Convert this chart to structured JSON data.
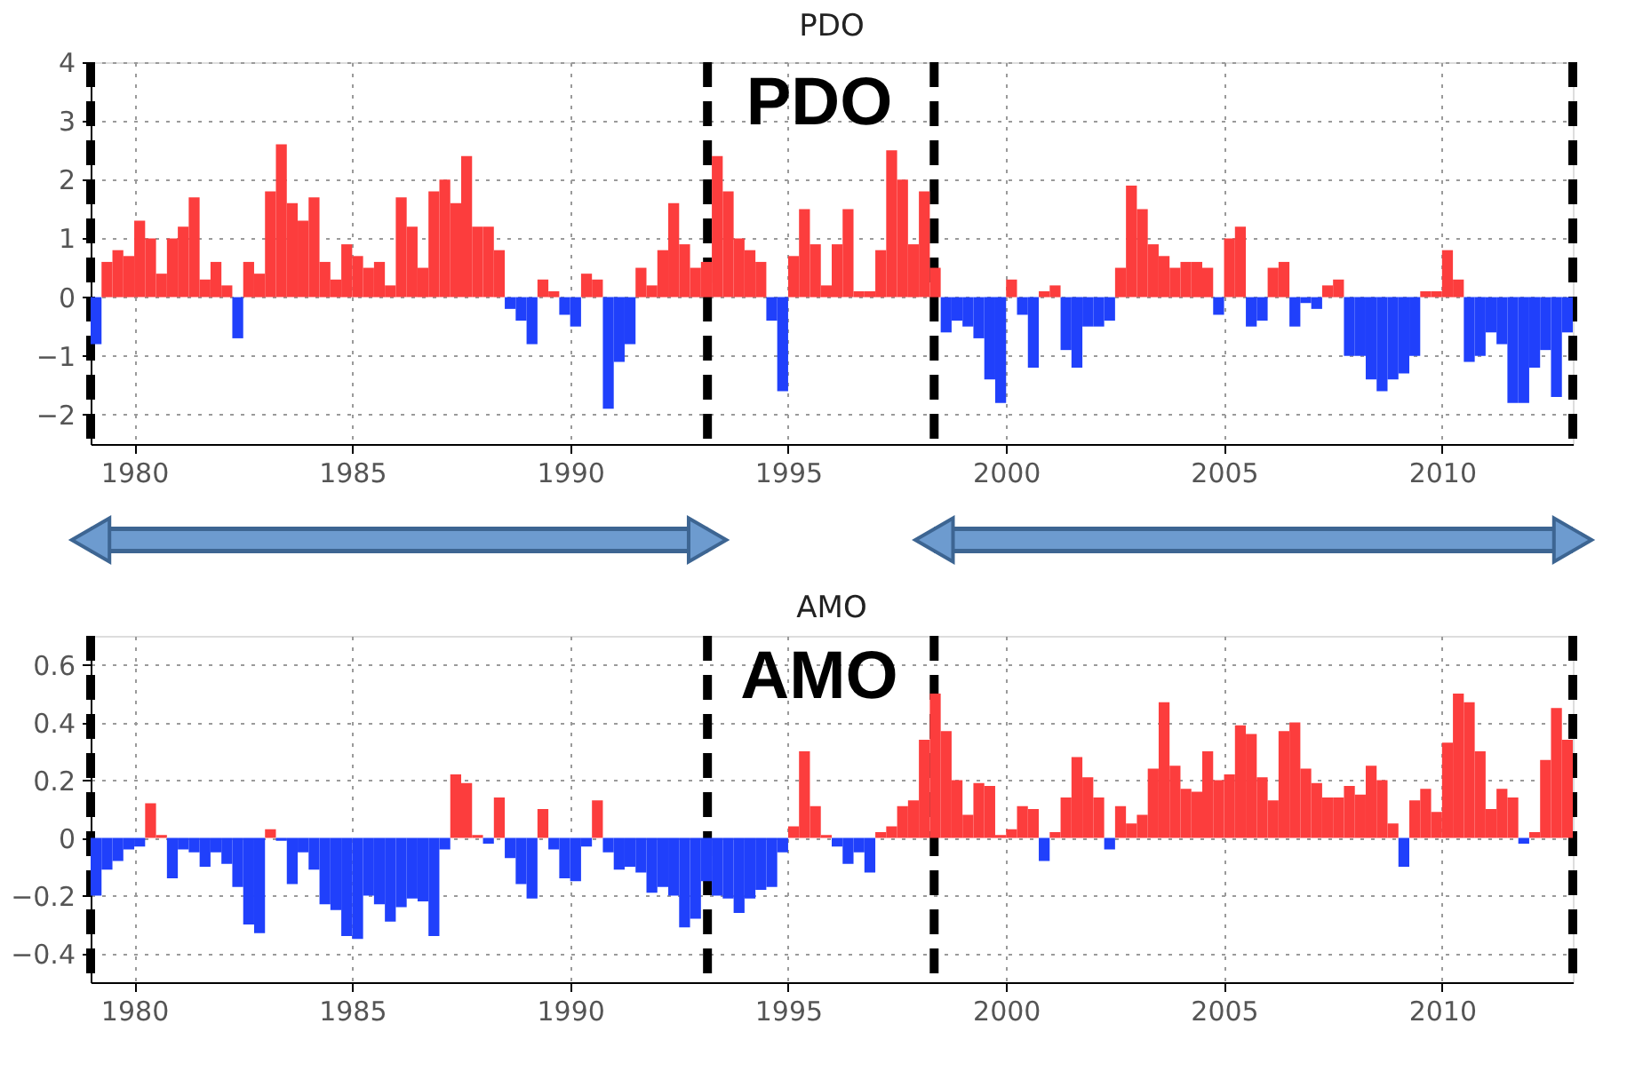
{
  "chart_data": [
    {
      "type": "bar",
      "title": "PDO",
      "annotations": [
        "PDO"
      ],
      "x": [
        1979.125,
        1979.375,
        1979.625,
        1979.875,
        1980.125,
        1980.375,
        1980.625,
        1980.875,
        1981.125,
        1981.375,
        1981.625,
        1981.875,
        1982.125,
        1982.375,
        1982.625,
        1982.875,
        1983.125,
        1983.375,
        1983.625,
        1983.875,
        1984.125,
        1984.375,
        1984.625,
        1984.875,
        1985.125,
        1985.375,
        1985.625,
        1985.875,
        1986.125,
        1986.375,
        1986.625,
        1986.875,
        1987.125,
        1987.375,
        1987.625,
        1987.875,
        1988.125,
        1988.375,
        1988.625,
        1988.875,
        1989.125,
        1989.375,
        1989.625,
        1989.875,
        1990.125,
        1990.375,
        1990.625,
        1990.875,
        1991.125,
        1991.375,
        1991.625,
        1991.875,
        1992.125,
        1992.375,
        1992.625,
        1992.875,
        1993.125,
        1993.375,
        1993.625,
        1993.875,
        1994.125,
        1994.375,
        1994.625,
        1994.875,
        1995.125,
        1995.375,
        1995.625,
        1995.875,
        1996.125,
        1996.375,
        1996.625,
        1996.875,
        1997.125,
        1997.375,
        1997.625,
        1997.875,
        1998.125,
        1998.375,
        1998.625,
        1998.875,
        1999.125,
        1999.375,
        1999.625,
        1999.875,
        2000.125,
        2000.375,
        2000.625,
        2000.875,
        2001.125,
        2001.375,
        2001.625,
        2001.875,
        2002.125,
        2002.375,
        2002.625,
        2002.875,
        2003.125,
        2003.375,
        2003.625,
        2003.875,
        2004.125,
        2004.375,
        2004.625,
        2004.875,
        2005.125,
        2005.375,
        2005.625,
        2005.875,
        2006.125,
        2006.375,
        2006.625,
        2006.875,
        2007.125,
        2007.375,
        2007.625,
        2007.875,
        2008.125,
        2008.375,
        2008.625,
        2008.875,
        2009.125,
        2009.375,
        2009.625,
        2009.875,
        2010.125,
        2010.375,
        2010.625,
        2010.875,
        2011.125,
        2011.375,
        2011.625,
        2011.875,
        2012.125,
        2012.375,
        2012.625,
        2012.875
      ],
      "values": [
        -0.8,
        0.6,
        0.8,
        0.7,
        1.3,
        1.0,
        0.4,
        1.0,
        1.2,
        1.7,
        0.3,
        0.6,
        0.2,
        -0.7,
        0.6,
        0.4,
        1.8,
        2.6,
        1.6,
        1.3,
        1.7,
        0.6,
        0.3,
        0.9,
        0.7,
        0.5,
        0.6,
        0.2,
        1.7,
        1.2,
        0.5,
        1.8,
        2.0,
        1.6,
        2.4,
        1.2,
        1.2,
        0.8,
        -0.2,
        -0.4,
        -0.8,
        0.3,
        0.1,
        -0.3,
        -0.5,
        0.4,
        0.3,
        -1.9,
        -1.1,
        -0.8,
        0.5,
        0.2,
        0.8,
        1.6,
        0.9,
        0.5,
        0.6,
        2.4,
        1.8,
        1.0,
        0.8,
        0.6,
        -0.4,
        -1.6,
        0.7,
        1.5,
        0.9,
        0.2,
        0.9,
        1.5,
        0.1,
        0.1,
        0.8,
        2.5,
        2.0,
        0.9,
        1.8,
        0.5,
        -0.6,
        -0.4,
        -0.5,
        -0.7,
        -1.4,
        -1.8,
        0.3,
        -0.3,
        -1.2,
        0.1,
        0.2,
        -0.9,
        -1.2,
        -0.5,
        -0.5,
        -0.4,
        0.5,
        1.9,
        1.5,
        0.9,
        0.7,
        0.5,
        0.6,
        0.6,
        0.5,
        -0.3,
        1.0,
        1.2,
        -0.5,
        -0.4,
        0.5,
        0.6,
        -0.5,
        -0.1,
        -0.2,
        0.2,
        0.3,
        -1.0,
        -1.0,
        -1.4,
        -1.6,
        -1.4,
        -1.3,
        -1.0,
        0.1,
        0.1,
        0.8,
        0.3,
        -1.1,
        -1.0,
        -0.6,
        -0.8,
        -1.8,
        -1.8,
        -1.2,
        -0.9,
        -1.7,
        -0.6
      ],
      "colors": [
        "#2040fb",
        "#fc3d3d",
        "#fc3d3d",
        "#fc3d3d",
        "#fc3d3d",
        "#fc3d3d",
        "#fc3d3d",
        "#fc3d3d",
        "#fc3d3d",
        "#fc3d3d",
        "#fc3d3d",
        "#fc3d3d",
        "#fc3d3d",
        "#2040fb",
        "#fc3d3d",
        "#fc3d3d",
        "#fc3d3d",
        "#fc3d3d",
        "#fc3d3d",
        "#fc3d3d",
        "#fc3d3d",
        "#fc3d3d",
        "#fc3d3d",
        "#fc3d3d",
        "#fc3d3d",
        "#fc3d3d",
        "#fc3d3d",
        "#fc3d3d",
        "#fc3d3d",
        "#fc3d3d",
        "#fc3d3d",
        "#fc3d3d",
        "#fc3d3d",
        "#fc3d3d",
        "#fc3d3d",
        "#fc3d3d",
        "#fc3d3d",
        "#fc3d3d",
        "#2040fb",
        "#2040fb",
        "#2040fb",
        "#fc3d3d",
        "#fc3d3d",
        "#2040fb",
        "#2040fb",
        "#fc3d3d",
        "#fc3d3d",
        "#2040fb",
        "#2040fb",
        "#2040fb",
        "#fc3d3d",
        "#fc3d3d",
        "#fc3d3d",
        "#fc3d3d",
        "#fc3d3d",
        "#fc3d3d",
        "#fc3d3d",
        "#fc3d3d",
        "#fc3d3d",
        "#fc3d3d",
        "#fc3d3d",
        "#fc3d3d",
        "#2040fb",
        "#2040fb",
        "#fc3d3d",
        "#fc3d3d",
        "#fc3d3d",
        "#fc3d3d",
        "#fc3d3d",
        "#fc3d3d",
        "#fc3d3d",
        "#fc3d3d",
        "#fc3d3d",
        "#fc3d3d",
        "#fc3d3d",
        "#fc3d3d",
        "#fc3d3d",
        "#fc3d3d",
        "#2040fb",
        "#2040fb",
        "#2040fb",
        "#2040fb",
        "#2040fb",
        "#2040fb",
        "#fc3d3d",
        "#2040fb",
        "#2040fb",
        "#fc3d3d",
        "#fc3d3d",
        "#2040fb",
        "#2040fb",
        "#2040fb",
        "#2040fb",
        "#2040fb",
        "#fc3d3d",
        "#fc3d3d",
        "#fc3d3d",
        "#fc3d3d",
        "#fc3d3d",
        "#fc3d3d",
        "#fc3d3d",
        "#fc3d3d",
        "#fc3d3d",
        "#2040fb",
        "#fc3d3d",
        "#fc3d3d",
        "#2040fb",
        "#2040fb",
        "#fc3d3d",
        "#fc3d3d",
        "#2040fb",
        "#2040fb",
        "#2040fb",
        "#fc3d3d",
        "#fc3d3d",
        "#2040fb",
        "#2040fb",
        "#2040fb",
        "#2040fb",
        "#2040fb",
        "#2040fb",
        "#2040fb",
        "#fc3d3d",
        "#fc3d3d",
        "#fc3d3d",
        "#fc3d3d",
        "#2040fb",
        "#2040fb",
        "#2040fb",
        "#2040fb",
        "#2040fb",
        "#2040fb",
        "#2040fb",
        "#2040fb",
        "#2040fb",
        "#2040fb"
      ],
      "xlim": [
        1979,
        2013
      ],
      "xticks": [
        1980,
        1985,
        1990,
        1995,
        2000,
        2005,
        2010
      ],
      "ylim": [
        -2.5,
        4
      ],
      "yticks": [
        -2,
        -1,
        0,
        1,
        2,
        3,
        4
      ],
      "grid": true,
      "ref_lines": [
        {
          "axis": "x",
          "value": 1979,
          "color": "#000000",
          "line_style": "dashed"
        },
        {
          "axis": "x",
          "value": 1993.15,
          "color": "#000000",
          "line_style": "dashed"
        },
        {
          "axis": "x",
          "value": 1998.35,
          "color": "#000000",
          "line_style": "dashed"
        },
        {
          "axis": "x",
          "value": 2013,
          "color": "#000000",
          "line_style": "dashed"
        }
      ]
    },
    {
      "type": "bar",
      "title": "AMO",
      "annotations": [
        "AMO"
      ],
      "x": [
        1979.125,
        1979.375,
        1979.625,
        1979.875,
        1980.125,
        1980.375,
        1980.625,
        1980.875,
        1981.125,
        1981.375,
        1981.625,
        1981.875,
        1982.125,
        1982.375,
        1982.625,
        1982.875,
        1983.125,
        1983.375,
        1983.625,
        1983.875,
        1984.125,
        1984.375,
        1984.625,
        1984.875,
        1985.125,
        1985.375,
        1985.625,
        1985.875,
        1986.125,
        1986.375,
        1986.625,
        1986.875,
        1987.125,
        1987.375,
        1987.625,
        1987.875,
        1988.125,
        1988.375,
        1988.625,
        1988.875,
        1989.125,
        1989.375,
        1989.625,
        1989.875,
        1990.125,
        1990.375,
        1990.625,
        1990.875,
        1991.125,
        1991.375,
        1991.625,
        1991.875,
        1992.125,
        1992.375,
        1992.625,
        1992.875,
        1993.125,
        1993.375,
        1993.625,
        1993.875,
        1994.125,
        1994.375,
        1994.625,
        1994.875,
        1995.125,
        1995.375,
        1995.625,
        1995.875,
        1996.125,
        1996.375,
        1996.625,
        1996.875,
        1997.125,
        1997.375,
        1997.625,
        1997.875,
        1998.125,
        1998.375,
        1998.625,
        1998.875,
        1999.125,
        1999.375,
        1999.625,
        1999.875,
        2000.125,
        2000.375,
        2000.625,
        2000.875,
        2001.125,
        2001.375,
        2001.625,
        2001.875,
        2002.125,
        2002.375,
        2002.625,
        2002.875,
        2003.125,
        2003.375,
        2003.625,
        2003.875,
        2004.125,
        2004.375,
        2004.625,
        2004.875,
        2005.125,
        2005.375,
        2005.625,
        2005.875,
        2006.125,
        2006.375,
        2006.625,
        2006.875,
        2007.125,
        2007.375,
        2007.625,
        2007.875,
        2008.125,
        2008.375,
        2008.625,
        2008.875,
        2009.125,
        2009.375,
        2009.625,
        2009.875,
        2010.125,
        2010.375,
        2010.625,
        2010.875,
        2011.125,
        2011.375,
        2011.625,
        2011.875,
        2012.125,
        2012.375,
        2012.625,
        2012.875
      ],
      "values": [
        -0.2,
        -0.11,
        -0.08,
        -0.04,
        -0.03,
        0.12,
        0.01,
        -0.14,
        -0.04,
        -0.05,
        -0.1,
        -0.05,
        -0.09,
        -0.17,
        -0.3,
        -0.33,
        0.03,
        -0.01,
        -0.16,
        -0.05,
        -0.11,
        -0.23,
        -0.25,
        -0.34,
        -0.35,
        -0.2,
        -0.23,
        -0.29,
        -0.24,
        -0.21,
        -0.22,
        -0.34,
        -0.04,
        0.22,
        0.19,
        0.01,
        -0.02,
        0.14,
        -0.07,
        -0.16,
        -0.21,
        0.1,
        -0.04,
        -0.14,
        -0.15,
        -0.03,
        0.13,
        -0.05,
        -0.11,
        -0.1,
        -0.12,
        -0.19,
        -0.17,
        -0.2,
        -0.31,
        -0.28,
        -0.15,
        -0.2,
        -0.21,
        -0.26,
        -0.21,
        -0.18,
        -0.17,
        -0.05,
        0.04,
        0.3,
        0.11,
        0.01,
        -0.03,
        -0.09,
        -0.05,
        -0.12,
        0.02,
        0.04,
        0.11,
        0.13,
        0.34,
        0.5,
        0.37,
        0.2,
        0.08,
        0.19,
        0.18,
        0.01,
        0.03,
        0.11,
        0.1,
        -0.08,
        0.02,
        0.14,
        0.28,
        0.21,
        0.14,
        -0.04,
        0.11,
        0.05,
        0.08,
        0.24,
        0.47,
        0.25,
        0.17,
        0.16,
        0.3,
        0.2,
        0.22,
        0.39,
        0.36,
        0.21,
        0.13,
        0.37,
        0.4,
        0.24,
        0.19,
        0.14,
        0.14,
        0.18,
        0.15,
        0.25,
        0.2,
        0.05,
        -0.1,
        0.13,
        0.17,
        0.09,
        0.33,
        0.5,
        0.47,
        0.3,
        0.1,
        0.17,
        0.14,
        -0.02,
        0.02,
        0.27,
        0.45,
        0.34
      ],
      "colors": [
        "#2040fb",
        "#2040fb",
        "#2040fb",
        "#2040fb",
        "#2040fb",
        "#fc3d3d",
        "#fc3d3d",
        "#2040fb",
        "#2040fb",
        "#2040fb",
        "#2040fb",
        "#2040fb",
        "#2040fb",
        "#2040fb",
        "#2040fb",
        "#2040fb",
        "#fc3d3d",
        "#2040fb",
        "#2040fb",
        "#2040fb",
        "#2040fb",
        "#2040fb",
        "#2040fb",
        "#2040fb",
        "#2040fb",
        "#2040fb",
        "#2040fb",
        "#2040fb",
        "#2040fb",
        "#2040fb",
        "#2040fb",
        "#2040fb",
        "#2040fb",
        "#fc3d3d",
        "#fc3d3d",
        "#fc3d3d",
        "#2040fb",
        "#fc3d3d",
        "#2040fb",
        "#2040fb",
        "#2040fb",
        "#fc3d3d",
        "#2040fb",
        "#2040fb",
        "#2040fb",
        "#2040fb",
        "#fc3d3d",
        "#2040fb",
        "#2040fb",
        "#2040fb",
        "#2040fb",
        "#2040fb",
        "#2040fb",
        "#2040fb",
        "#2040fb",
        "#2040fb",
        "#2040fb",
        "#2040fb",
        "#2040fb",
        "#2040fb",
        "#2040fb",
        "#2040fb",
        "#2040fb",
        "#2040fb",
        "#fc3d3d",
        "#fc3d3d",
        "#fc3d3d",
        "#fc3d3d",
        "#2040fb",
        "#2040fb",
        "#2040fb",
        "#2040fb",
        "#fc3d3d",
        "#fc3d3d",
        "#fc3d3d",
        "#fc3d3d",
        "#fc3d3d",
        "#fc3d3d",
        "#fc3d3d",
        "#fc3d3d",
        "#fc3d3d",
        "#fc3d3d",
        "#fc3d3d",
        "#fc3d3d",
        "#fc3d3d",
        "#fc3d3d",
        "#fc3d3d",
        "#2040fb",
        "#fc3d3d",
        "#fc3d3d",
        "#fc3d3d",
        "#fc3d3d",
        "#fc3d3d",
        "#2040fb",
        "#fc3d3d",
        "#fc3d3d",
        "#fc3d3d",
        "#fc3d3d",
        "#fc3d3d",
        "#fc3d3d",
        "#fc3d3d",
        "#fc3d3d",
        "#fc3d3d",
        "#fc3d3d",
        "#fc3d3d",
        "#fc3d3d",
        "#fc3d3d",
        "#fc3d3d",
        "#fc3d3d",
        "#fc3d3d",
        "#fc3d3d",
        "#fc3d3d",
        "#fc3d3d",
        "#fc3d3d",
        "#fc3d3d",
        "#fc3d3d",
        "#fc3d3d",
        "#fc3d3d",
        "#fc3d3d",
        "#fc3d3d",
        "#2040fb",
        "#fc3d3d",
        "#fc3d3d",
        "#fc3d3d",
        "#fc3d3d",
        "#fc3d3d",
        "#fc3d3d",
        "#fc3d3d",
        "#fc3d3d",
        "#fc3d3d",
        "#fc3d3d",
        "#2040fb",
        "#fc3d3d",
        "#fc3d3d",
        "#fc3d3d",
        "#fc3d3d"
      ],
      "xlim": [
        1979,
        2013
      ],
      "xticks": [
        1980,
        1985,
        1990,
        1995,
        2000,
        2005,
        2010
      ],
      "ylim": [
        -0.5,
        0.7
      ],
      "yticks": [
        -0.4,
        -0.2,
        0,
        0.2,
        0.4,
        0.6
      ],
      "grid": true,
      "ref_lines": [
        {
          "axis": "x",
          "value": 1979,
          "color": "#000000",
          "line_style": "dashed"
        },
        {
          "axis": "x",
          "value": 1993.15,
          "color": "#000000",
          "line_style": "dashed"
        },
        {
          "axis": "x",
          "value": 1998.35,
          "color": "#000000",
          "line_style": "dashed"
        },
        {
          "axis": "x",
          "value": 2013,
          "color": "#000000",
          "line_style": "dashed"
        }
      ]
    }
  ]
}
